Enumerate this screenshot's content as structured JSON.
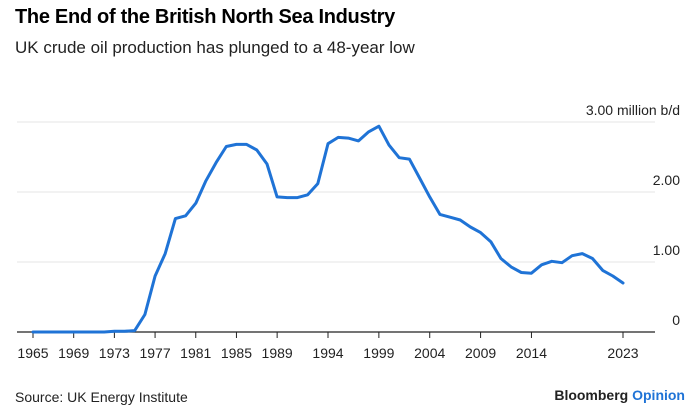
{
  "chart_data": {
    "type": "line",
    "title": "The End of the British North Sea Industry",
    "subtitle": "UK crude oil production has plunged to a 48-year low",
    "ylabel_unit": "million b/d",
    "ylim": [
      0,
      3.0
    ],
    "y_ticks": [
      {
        "value": 0,
        "label": "0"
      },
      {
        "value": 1.0,
        "label": "1.00"
      },
      {
        "value": 2.0,
        "label": "2.00"
      },
      {
        "value": 3.0,
        "label": "3.00 million b/d"
      }
    ],
    "x_ticks": [
      "1965",
      "1969",
      "1973",
      "1977",
      "1981",
      "1985",
      "1989",
      "1994",
      "1999",
      "2004",
      "2009",
      "2014",
      "2023"
    ],
    "series": [
      {
        "name": "UK crude oil production",
        "color": "#1f73d6",
        "x": [
          1965,
          1966,
          1967,
          1968,
          1969,
          1970,
          1971,
          1972,
          1973,
          1974,
          1975,
          1976,
          1977,
          1978,
          1979,
          1980,
          1981,
          1982,
          1983,
          1984,
          1985,
          1986,
          1987,
          1988,
          1989,
          1990,
          1991,
          1992,
          1993,
          1994,
          1995,
          1996,
          1997,
          1998,
          1999,
          2000,
          2001,
          2002,
          2003,
          2004,
          2005,
          2006,
          2007,
          2008,
          2009,
          2010,
          2011,
          2012,
          2013,
          2014,
          2015,
          2016,
          2017,
          2018,
          2019,
          2020,
          2021,
          2022,
          2023
        ],
        "values": [
          0.0,
          0.0,
          0.0,
          0.0,
          0.0,
          0.0,
          0.0,
          0.0,
          0.01,
          0.01,
          0.02,
          0.25,
          0.8,
          1.12,
          1.62,
          1.66,
          1.84,
          2.16,
          2.42,
          2.65,
          2.68,
          2.68,
          2.6,
          2.4,
          1.93,
          1.92,
          1.92,
          1.96,
          2.12,
          2.69,
          2.78,
          2.77,
          2.73,
          2.86,
          2.94,
          2.67,
          2.49,
          2.47,
          2.2,
          1.93,
          1.68,
          1.64,
          1.6,
          1.5,
          1.42,
          1.29,
          1.05,
          0.93,
          0.85,
          0.84,
          0.96,
          1.01,
          0.99,
          1.09,
          1.12,
          1.05,
          0.88,
          0.8,
          0.7
        ]
      }
    ]
  },
  "source": "Source: UK Energy Institute",
  "brand": {
    "name": "Bloomberg",
    "suffix": "Opinion"
  }
}
